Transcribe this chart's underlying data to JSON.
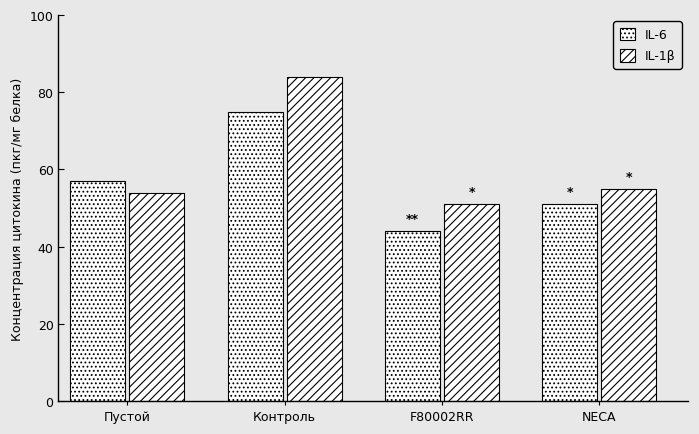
{
  "categories": [
    "Пустой",
    "Контроль",
    "F80002RR",
    "NECA"
  ],
  "il6_values": [
    57,
    75,
    44,
    51
  ],
  "il1b_values": [
    54,
    84,
    51,
    55
  ],
  "ylabel": "Концентрация цитокина (пкг/мг белка)",
  "ylim": [
    0,
    100
  ],
  "yticks": [
    0,
    20,
    40,
    60,
    80,
    100
  ],
  "legend_labels": [
    "IL-6",
    "IL-1β"
  ],
  "bar_width": 0.28,
  "group_positions": [
    0.25,
    1.05,
    1.85,
    2.65
  ],
  "annotations": {
    "F80002RR_il6": "**",
    "F80002RR_il1b": "*",
    "NECA_il6": "*",
    "NECA_il1b": "*"
  },
  "background_color": "#e8e8e8",
  "il6_color": "#d8d8d8",
  "il6_hatch": "....",
  "il1b_color": "#c0c0c0",
  "il1b_hatch": "////",
  "edgecolor": "#000000",
  "fontsize_labels": 9,
  "fontsize_ticks": 9,
  "fontsize_legend": 9,
  "fontsize_annotation": 9
}
